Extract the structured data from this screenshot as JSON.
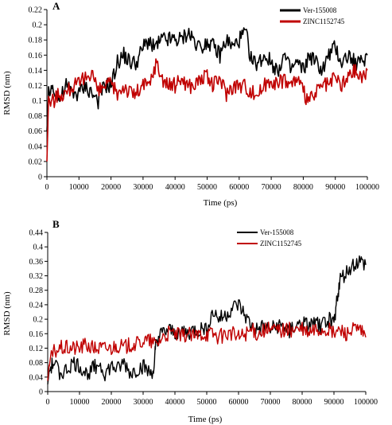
{
  "chart_data": [
    {
      "type": "line",
      "panel_label": "A",
      "xlabel": "Time (ps)",
      "ylabel": "RMSD (nm)",
      "xlim": [
        0,
        100000
      ],
      "ylim": [
        0,
        0.22
      ],
      "x_ticks": [
        0,
        10000,
        20000,
        30000,
        40000,
        50000,
        60000,
        70000,
        80000,
        90000,
        100000
      ],
      "y_ticks": [
        0,
        0.02,
        0.04,
        0.06,
        0.08,
        0.1,
        0.12,
        0.14,
        0.16,
        0.18,
        0.2,
        0.22
      ],
      "x_tick_labels": [
        "0",
        "10000",
        "20000",
        "30000",
        "40000",
        "50000",
        "60000",
        "70000",
        "80000",
        "90000",
        "100000"
      ],
      "y_tick_labels": [
        "0",
        "0.02",
        "0.04",
        "0.06",
        "0.08",
        "0.1",
        "0.12",
        "0.14",
        "0.16",
        "0.18",
        "0.2",
        "0.22"
      ],
      "grid": false,
      "legend_position": "top-right",
      "series": [
        {
          "name": "Ver-155008",
          "color": "#000000",
          "x": [
            0,
            500,
            2000,
            4000,
            6000,
            8000,
            10000,
            12000,
            14000,
            16000,
            18000,
            20000,
            22000,
            24000,
            26000,
            28000,
            30000,
            32000,
            34000,
            36000,
            38000,
            40000,
            42000,
            44000,
            46000,
            48000,
            50000,
            52000,
            54000,
            56000,
            58000,
            60000,
            62000,
            64000,
            66000,
            68000,
            70000,
            72000,
            74000,
            76000,
            78000,
            80000,
            82000,
            84000,
            86000,
            88000,
            90000,
            92000,
            94000,
            96000,
            98000,
            100000
          ],
          "y": [
            0.06,
            0.11,
            0.12,
            0.1,
            0.12,
            0.11,
            0.11,
            0.12,
            0.11,
            0.1,
            0.12,
            0.12,
            0.15,
            0.16,
            0.15,
            0.15,
            0.17,
            0.18,
            0.17,
            0.18,
            0.18,
            0.18,
            0.18,
            0.19,
            0.18,
            0.17,
            0.18,
            0.17,
            0.16,
            0.18,
            0.17,
            0.18,
            0.19,
            0.15,
            0.15,
            0.16,
            0.15,
            0.14,
            0.16,
            0.14,
            0.15,
            0.14,
            0.16,
            0.15,
            0.14,
            0.16,
            0.17,
            0.15,
            0.16,
            0.15,
            0.15,
            0.16
          ]
        },
        {
          "name": "ZINC1152745",
          "color": "#c00000",
          "x": [
            0,
            500,
            2000,
            4000,
            6000,
            8000,
            10000,
            12000,
            14000,
            16000,
            18000,
            20000,
            22000,
            24000,
            26000,
            28000,
            30000,
            32000,
            34000,
            36000,
            38000,
            40000,
            42000,
            44000,
            46000,
            48000,
            50000,
            52000,
            54000,
            56000,
            58000,
            60000,
            62000,
            64000,
            66000,
            68000,
            70000,
            72000,
            74000,
            76000,
            78000,
            80000,
            82000,
            84000,
            86000,
            88000,
            90000,
            92000,
            94000,
            96000,
            98000,
            100000
          ],
          "y": [
            0.02,
            0.1,
            0.1,
            0.11,
            0.11,
            0.12,
            0.12,
            0.13,
            0.14,
            0.11,
            0.12,
            0.12,
            0.11,
            0.12,
            0.11,
            0.11,
            0.12,
            0.12,
            0.15,
            0.13,
            0.12,
            0.12,
            0.13,
            0.12,
            0.12,
            0.13,
            0.13,
            0.12,
            0.13,
            0.11,
            0.12,
            0.12,
            0.12,
            0.11,
            0.11,
            0.12,
            0.13,
            0.12,
            0.13,
            0.12,
            0.13,
            0.11,
            0.1,
            0.11,
            0.12,
            0.12,
            0.13,
            0.12,
            0.13,
            0.14,
            0.13,
            0.14
          ]
        }
      ]
    },
    {
      "type": "line",
      "panel_label": "B",
      "xlabel": "Time (ps)",
      "ylabel": "RMSD (nm)",
      "xlim": [
        0,
        100000
      ],
      "ylim": [
        0,
        0.44
      ],
      "x_ticks": [
        0,
        10000,
        20000,
        30000,
        40000,
        50000,
        60000,
        70000,
        80000,
        90000,
        100000
      ],
      "y_ticks": [
        0,
        0.04,
        0.08,
        0.12,
        0.16,
        0.2,
        0.24,
        0.28,
        0.32,
        0.36,
        0.4,
        0.44
      ],
      "x_tick_labels": [
        "0",
        "10000",
        "20000",
        "30000",
        "40000",
        "50000",
        "60000",
        "70000",
        "80000",
        "90000",
        "100000"
      ],
      "y_tick_labels": [
        "0",
        "0.04",
        "0.08",
        "0.12",
        "0.16",
        "0.2",
        "0.24",
        "0.28",
        "0.32",
        "0.36",
        "0.4",
        "0.44"
      ],
      "grid": false,
      "legend_position": "top-right",
      "series": [
        {
          "name": "Ver-155008",
          "color": "#000000",
          "x": [
            0,
            500,
            2000,
            4000,
            6000,
            8000,
            10000,
            12000,
            14000,
            16000,
            18000,
            20000,
            22000,
            24000,
            26000,
            28000,
            30000,
            32000,
            33500,
            34000,
            36000,
            38000,
            40000,
            42000,
            44000,
            46000,
            48000,
            50000,
            52000,
            54000,
            56000,
            58000,
            60000,
            62000,
            64000,
            66000,
            68000,
            70000,
            72000,
            74000,
            76000,
            78000,
            80000,
            82000,
            84000,
            86000,
            88000,
            90000,
            91000,
            92000,
            94000,
            96000,
            98000,
            100000
          ],
          "y": [
            0.02,
            0.06,
            0.08,
            0.05,
            0.06,
            0.08,
            0.07,
            0.05,
            0.06,
            0.08,
            0.05,
            0.07,
            0.06,
            0.08,
            0.05,
            0.06,
            0.07,
            0.05,
            0.06,
            0.14,
            0.16,
            0.17,
            0.16,
            0.17,
            0.16,
            0.17,
            0.17,
            0.18,
            0.22,
            0.2,
            0.21,
            0.23,
            0.24,
            0.21,
            0.18,
            0.17,
            0.18,
            0.17,
            0.18,
            0.18,
            0.17,
            0.18,
            0.19,
            0.18,
            0.19,
            0.18,
            0.2,
            0.19,
            0.26,
            0.31,
            0.33,
            0.35,
            0.36,
            0.35
          ]
        },
        {
          "name": "ZINC1152745",
          "color": "#c00000",
          "x": [
            0,
            500,
            2000,
            4000,
            6000,
            8000,
            10000,
            12000,
            14000,
            16000,
            18000,
            20000,
            22000,
            24000,
            26000,
            28000,
            30000,
            32000,
            34000,
            36000,
            38000,
            40000,
            42000,
            44000,
            46000,
            48000,
            50000,
            52000,
            54000,
            56000,
            58000,
            60000,
            62000,
            64000,
            66000,
            68000,
            70000,
            72000,
            74000,
            76000,
            78000,
            80000,
            82000,
            84000,
            86000,
            88000,
            90000,
            92000,
            94000,
            96000,
            98000,
            100000
          ],
          "y": [
            0.03,
            0.08,
            0.11,
            0.12,
            0.12,
            0.12,
            0.12,
            0.13,
            0.12,
            0.12,
            0.12,
            0.12,
            0.13,
            0.12,
            0.13,
            0.13,
            0.14,
            0.14,
            0.13,
            0.15,
            0.16,
            0.16,
            0.15,
            0.16,
            0.15,
            0.16,
            0.16,
            0.16,
            0.15,
            0.16,
            0.16,
            0.15,
            0.16,
            0.17,
            0.16,
            0.17,
            0.17,
            0.17,
            0.17,
            0.17,
            0.17,
            0.17,
            0.16,
            0.17,
            0.17,
            0.17,
            0.16,
            0.17,
            0.16,
            0.17,
            0.17,
            0.15
          ]
        }
      ]
    }
  ]
}
